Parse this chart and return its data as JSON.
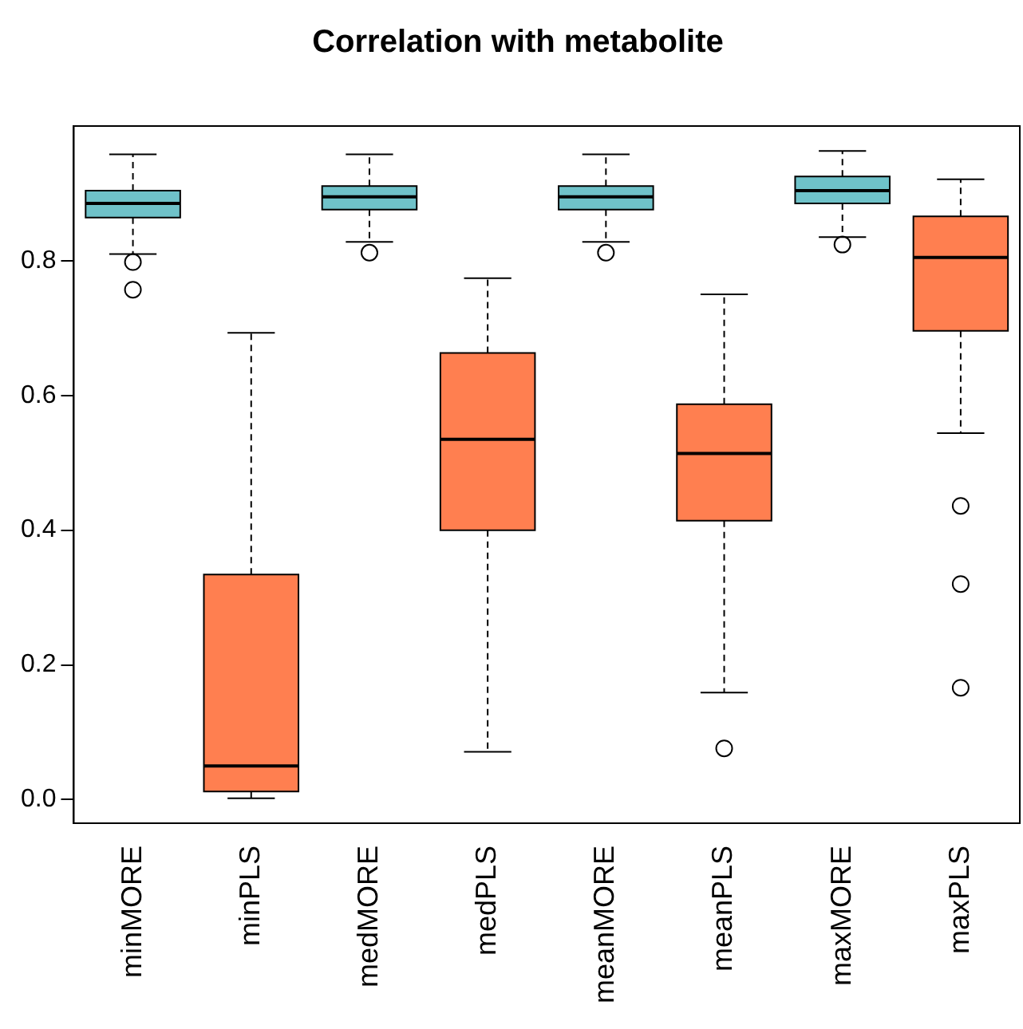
{
  "chart_data": {
    "type": "box",
    "title": "Correlation with metabolite",
    "categories": [
      "minMORE",
      "minPLS",
      "medMORE",
      "medPLS",
      "meanMORE",
      "meanPLS",
      "maxMORE",
      "maxPLS"
    ],
    "colors": [
      "#6fc2c9",
      "#ff7f50",
      "#6fc2c9",
      "#ff7f50",
      "#6fc2c9",
      "#ff7f50",
      "#6fc2c9",
      "#ff7f50"
    ],
    "boxes": [
      {
        "low": 0.81,
        "q1": 0.864,
        "median": 0.885,
        "q3": 0.904,
        "high": 0.958,
        "outliers": [
          0.798,
          0.757
        ]
      },
      {
        "low": 0.002,
        "q1": 0.012,
        "median": 0.05,
        "q3": 0.334,
        "high": 0.693
      },
      {
        "low": 0.828,
        "q1": 0.876,
        "median": 0.895,
        "q3": 0.911,
        "high": 0.958,
        "outliers": [
          0.812
        ]
      },
      {
        "low": 0.071,
        "q1": 0.4,
        "median": 0.535,
        "q3": 0.663,
        "high": 0.774
      },
      {
        "low": 0.828,
        "q1": 0.876,
        "median": 0.895,
        "q3": 0.911,
        "high": 0.958,
        "outliers": [
          0.812
        ]
      },
      {
        "low": 0.159,
        "q1": 0.414,
        "median": 0.514,
        "q3": 0.587,
        "high": 0.75,
        "outliers": [
          0.076
        ]
      },
      {
        "low": 0.835,
        "q1": 0.885,
        "median": 0.904,
        "q3": 0.925,
        "high": 0.963,
        "outliers": [
          0.824
        ]
      },
      {
        "low": 0.544,
        "q1": 0.696,
        "median": 0.805,
        "q3": 0.866,
        "high": 0.921,
        "outliers": [
          0.436,
          0.32,
          0.166
        ]
      }
    ],
    "ylim": [
      -0.035,
      1.0
    ],
    "yticks": [
      {
        "value": 0,
        "label": "0.0"
      },
      0.2,
      0.4,
      0.6,
      0.8
    ],
    "grid": false,
    "legend": false
  }
}
